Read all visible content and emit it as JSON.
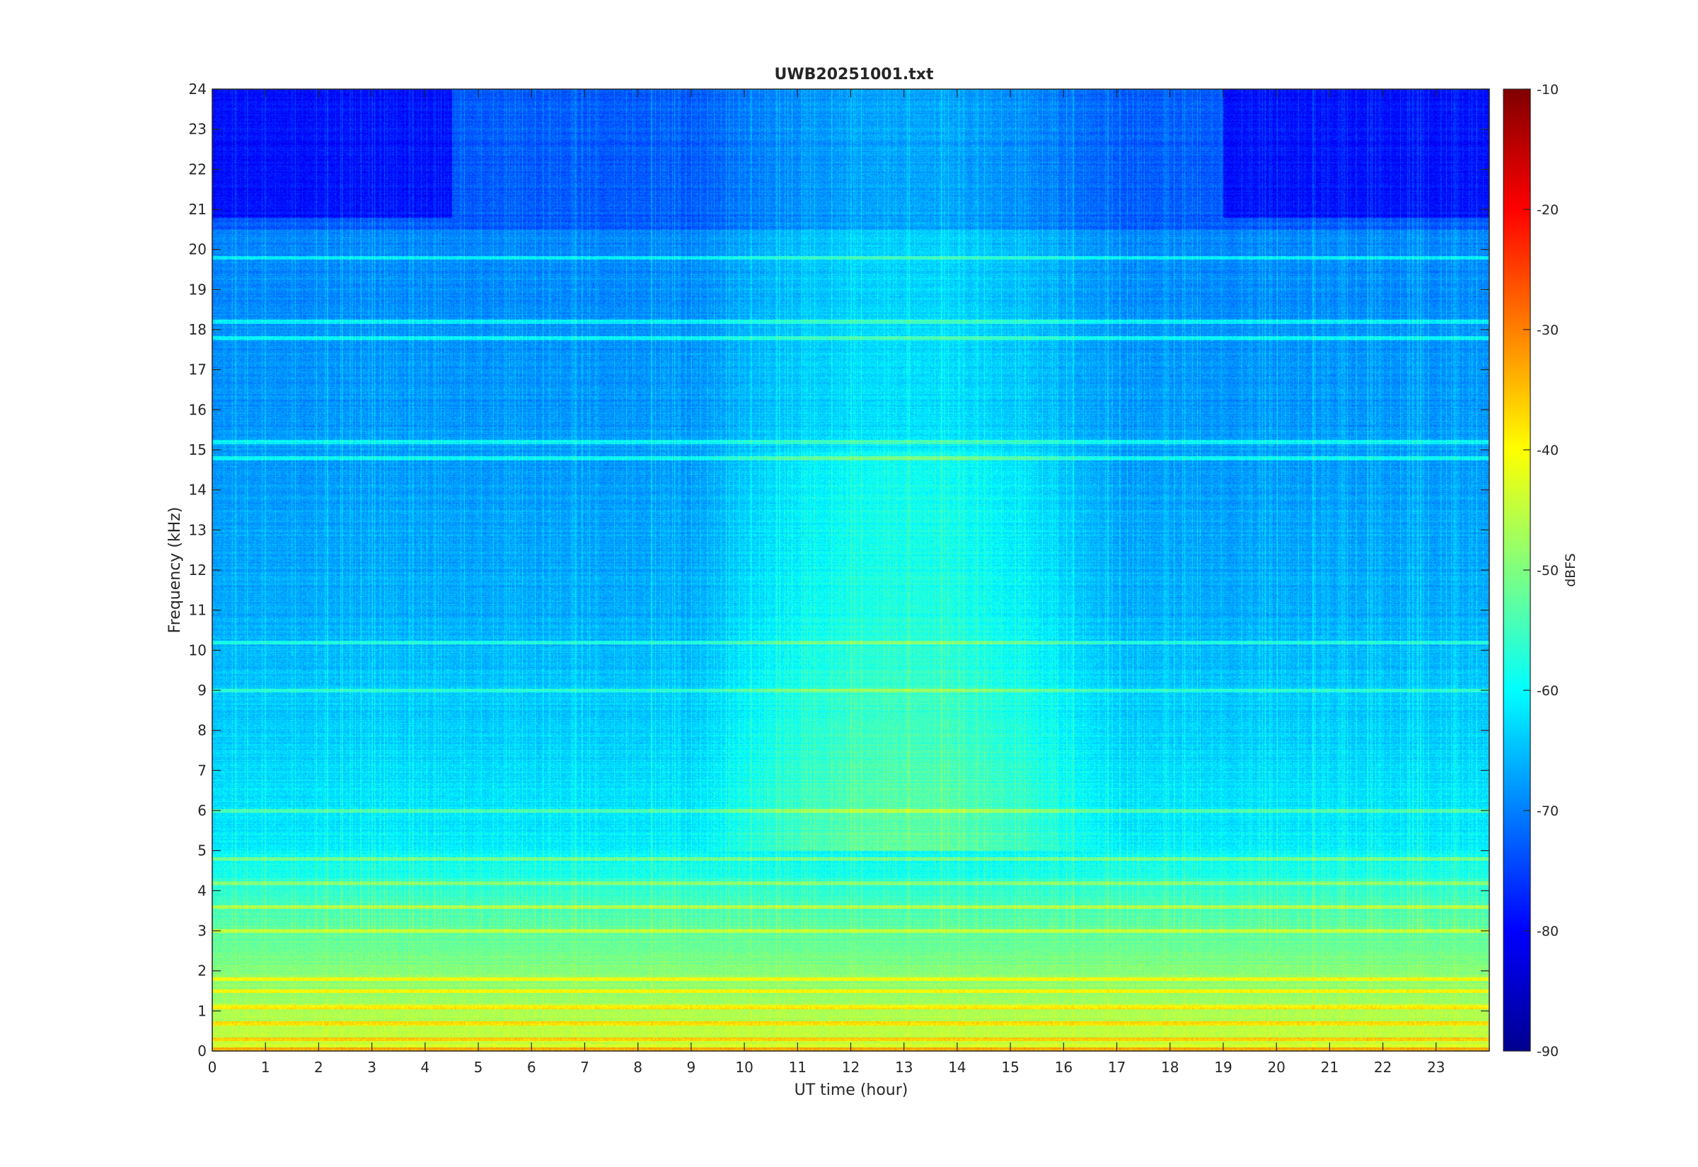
{
  "chart_data": {
    "type": "heatmap",
    "title": "UWB20251001.txt",
    "xlabel": "UT time (hour)",
    "ylabel": "Frequency (kHz)",
    "xlim": [
      0,
      24
    ],
    "ylim": [
      0,
      24
    ],
    "x_ticks": [
      0,
      1,
      2,
      3,
      4,
      5,
      6,
      7,
      8,
      9,
      10,
      11,
      12,
      13,
      14,
      15,
      16,
      17,
      18,
      19,
      20,
      21,
      22,
      23
    ],
    "y_ticks": [
      0,
      1,
      2,
      3,
      4,
      5,
      6,
      7,
      8,
      9,
      10,
      11,
      12,
      13,
      14,
      15,
      16,
      17,
      18,
      19,
      20,
      21,
      22,
      23,
      24
    ],
    "colorbar": {
      "label": "dBFS",
      "clim": [
        -90,
        -10
      ],
      "ticks": [
        -90,
        -80,
        -70,
        -60,
        -50,
        -40,
        -30,
        -20,
        -10
      ],
      "colormap": "jet"
    },
    "features": {
      "persistent_lines_khz": [
        19.8,
        18.2,
        17.8,
        15.2,
        14.8,
        10.2,
        9.0,
        6.0,
        4.8,
        4.2,
        3.6,
        3.0,
        1.8,
        1.5,
        1.1,
        0.7,
        0.3
      ],
      "daytime_brightening_hours": [
        9,
        17
      ],
      "low_band_max_khz": 3.0
    },
    "grid": false
  }
}
